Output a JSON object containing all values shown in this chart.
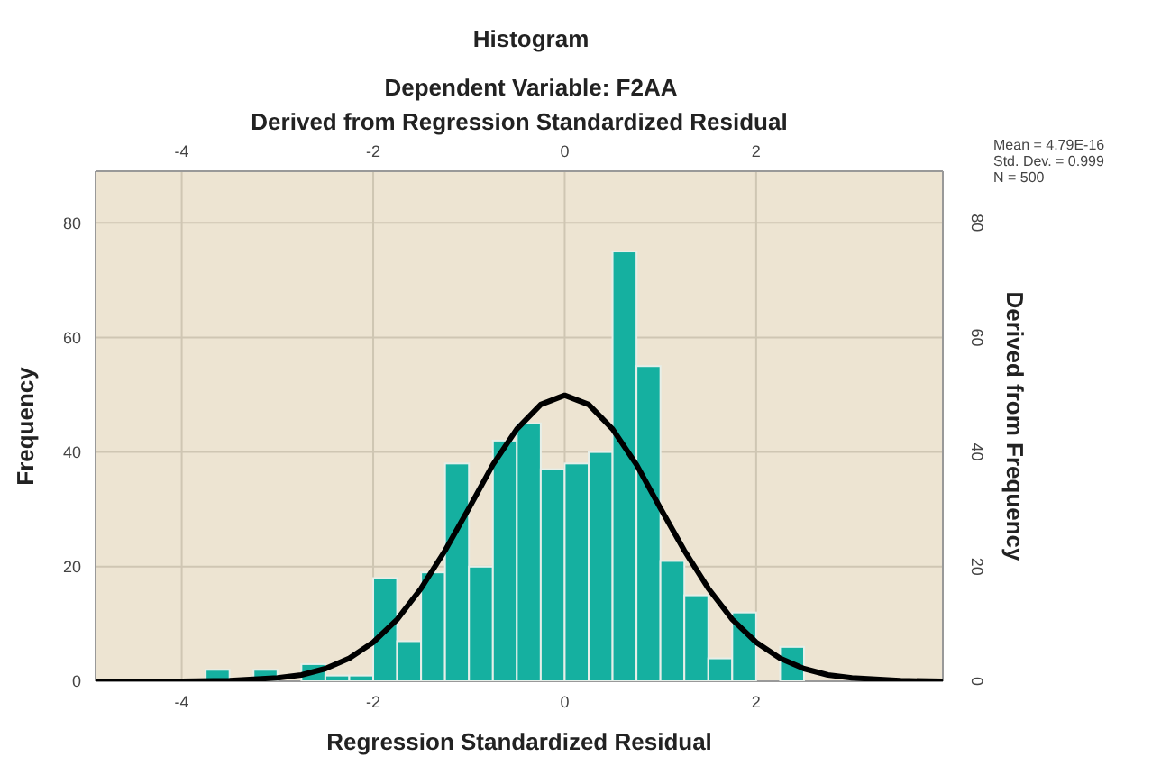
{
  "chart_data": {
    "type": "histogram",
    "title": "Histogram",
    "subtitle": "Dependent Variable: F2AA",
    "xlabel": "Regression Standardized Residual",
    "x2label": "Derived from Regression Standardized Residual",
    "ylabel": "Frequency",
    "y2label": "Derived from Frequency",
    "bins": [
      -3.75,
      -3.5,
      -3.25,
      -3,
      -2.75,
      -2.5,
      -2.25,
      -2,
      -1.75,
      -1.5,
      -1.25,
      -1,
      -0.75,
      -0.5,
      -0.25,
      0,
      0.25,
      0.5,
      0.75,
      1,
      1.25,
      1.5,
      1.75,
      2,
      2.25,
      2.5
    ],
    "values": [
      2,
      0,
      2,
      0,
      3,
      1,
      1,
      18,
      7,
      19,
      38,
      20,
      42,
      45,
      37,
      38,
      40,
      75,
      55,
      21,
      15,
      4,
      12,
      0,
      6
    ],
    "color": "#15b0a0",
    "series": [
      {
        "type": "line",
        "color": "#000000",
        "x": [
          -4.9,
          -4,
          -3.5,
          -3,
          -2.75,
          -2.5,
          -2.25,
          -2,
          -1.75,
          -1.5,
          -1.25,
          -1,
          -0.75,
          -0.5,
          -0.25,
          0,
          0.25,
          0.5,
          0.75,
          1,
          1.25,
          1.5,
          1.75,
          2,
          2.25,
          2.5,
          2.75,
          3,
          3.5,
          3.95
        ],
        "values": [
          0,
          0,
          0.1,
          0.6,
          1.1,
          2.2,
          4,
          6.8,
          10.8,
          16.2,
          22.8,
          30.2,
          37.8,
          44,
          48.3,
          49.9,
          48.3,
          44,
          37.8,
          30.2,
          22.8,
          16.2,
          10.8,
          6.8,
          4,
          2.2,
          1.1,
          0.6,
          0.1,
          0
        ]
      }
    ],
    "xlim": [
      -4.9,
      3.95
    ],
    "xticks": [
      -4,
      -2,
      0,
      2
    ],
    "x2lim": [
      -4.9,
      3.95
    ],
    "x2ticks": [
      -4,
      -2,
      0,
      2
    ],
    "ylim": [
      0,
      89
    ],
    "yticks": [
      0,
      20,
      40,
      60,
      80
    ],
    "y2lim": [
      0,
      89
    ],
    "y2ticks": [
      0,
      20,
      40,
      60,
      80
    ],
    "grid": true,
    "annotations": [
      "Mean = 4.79E-16",
      "Std. Dev. = 0.999",
      "N = 500"
    ]
  }
}
